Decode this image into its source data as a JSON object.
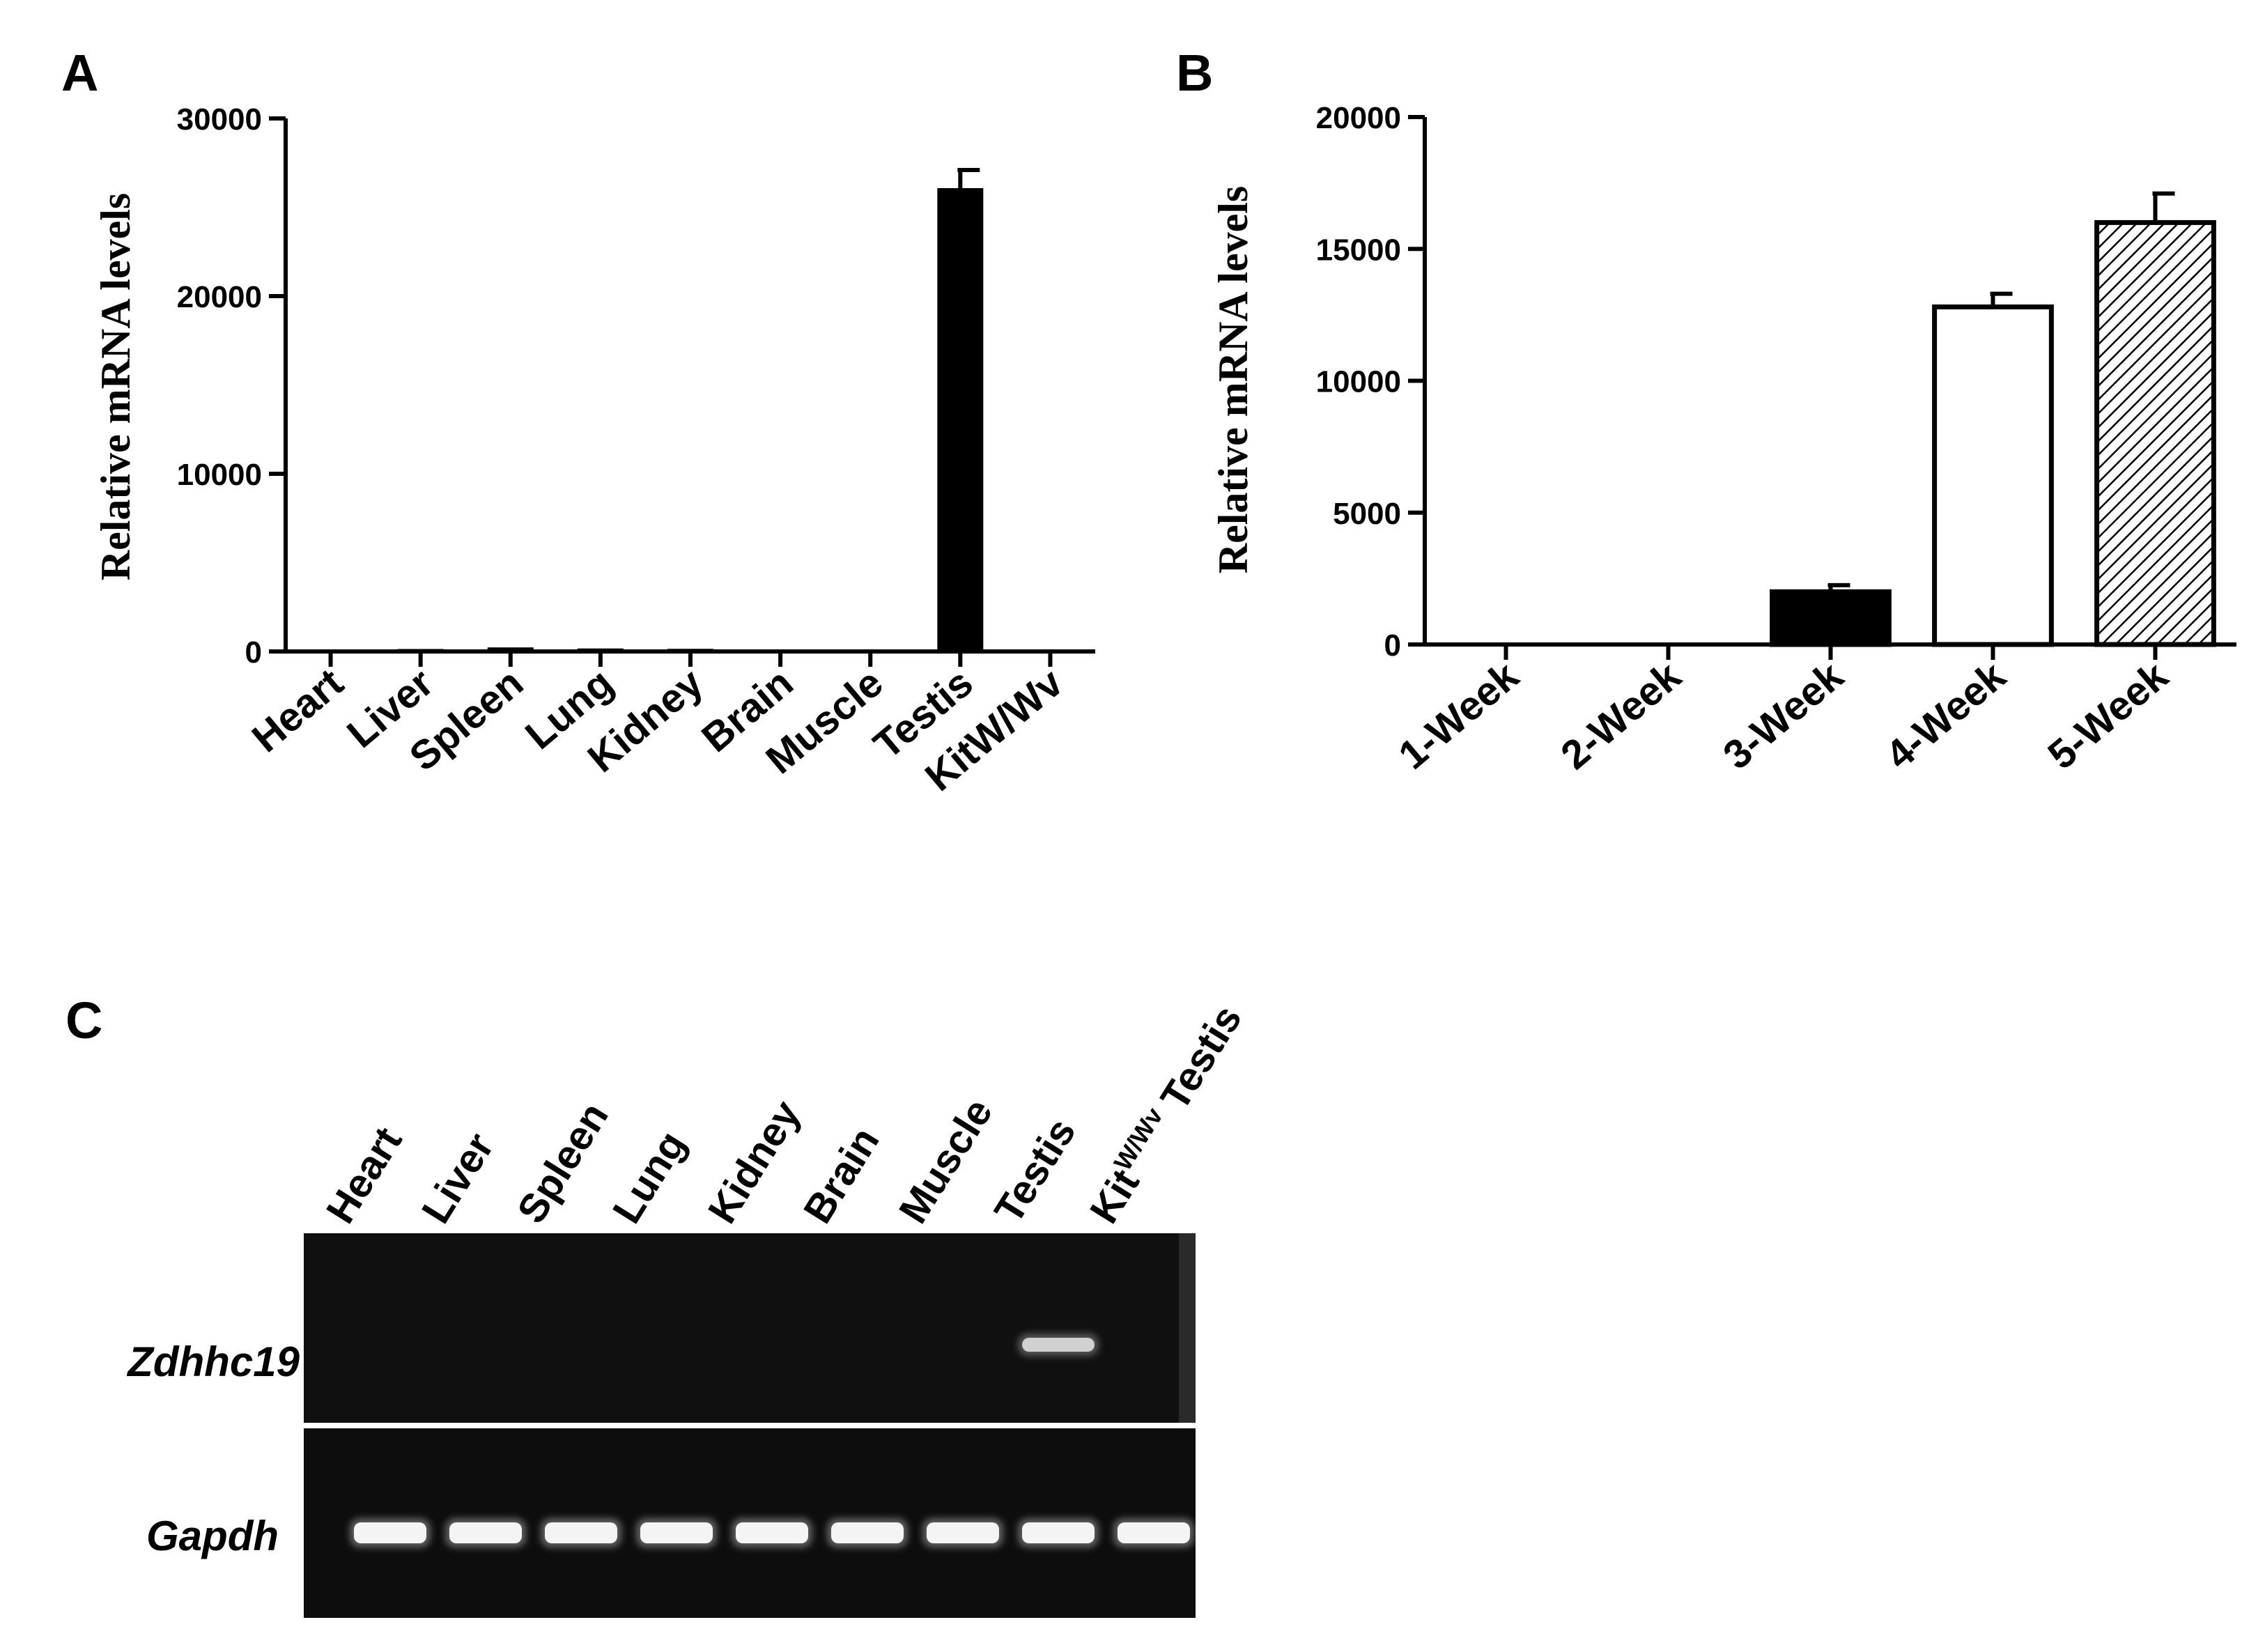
{
  "panels": {
    "a": {
      "letter": "A"
    },
    "b": {
      "letter": "B"
    },
    "c": {
      "letter": "C"
    }
  },
  "chart_data": [
    {
      "type": "bar",
      "panel": "A",
      "ylabel": "Relative mRNA levels",
      "categories": [
        "Heart",
        "Liver",
        "Spleen",
        "Lung",
        "Kidney",
        "Brain",
        "Muscle",
        "Testis",
        "KitW/Wv"
      ],
      "values": [
        10,
        60,
        150,
        90,
        70,
        20,
        20,
        26000,
        20
      ],
      "errors": [
        0,
        0,
        0,
        0,
        0,
        0,
        0,
        1100,
        0
      ],
      "yticks": [
        "0",
        "10000",
        "20000",
        "30000"
      ],
      "ylim": [
        0,
        30000
      ],
      "bar_fill": [
        "#000000",
        "#000000",
        "#000000",
        "#000000",
        "#000000",
        "#000000",
        "#000000",
        "#000000",
        "#000000"
      ],
      "grid": false
    },
    {
      "type": "bar",
      "panel": "B",
      "ylabel": "Relative mRNA levels",
      "categories": [
        "1-Week",
        "2-Week",
        "3-Week",
        "4-Week",
        "5-Week"
      ],
      "values": [
        0,
        0,
        2000,
        12800,
        16000
      ],
      "errors": [
        0,
        0,
        250,
        500,
        1100
      ],
      "yticks": [
        "0",
        "5000",
        "10000",
        "15000",
        "20000"
      ],
      "ylim": [
        0,
        20000
      ],
      "bar_fill": [
        "#000000",
        "#000000",
        "#000000",
        "#ffffff",
        "hatched"
      ],
      "grid": false
    }
  ],
  "gel": {
    "lanes": [
      "Heart",
      "Liver",
      "Spleen",
      "Lung",
      "Kidney",
      "Brain",
      "Muscle",
      "Testis"
    ],
    "last_lane": {
      "base": "Kit",
      "superscript": "W/Wv",
      "suffix": " Testis"
    },
    "rows": [
      {
        "gene": "Zdhhc19",
        "bands": [
          0,
          0,
          0,
          0,
          0,
          0,
          0,
          0.85,
          0
        ]
      },
      {
        "gene": "Gapdh",
        "bands": [
          1,
          1,
          1,
          1,
          1,
          1,
          1,
          1,
          1
        ]
      }
    ]
  }
}
